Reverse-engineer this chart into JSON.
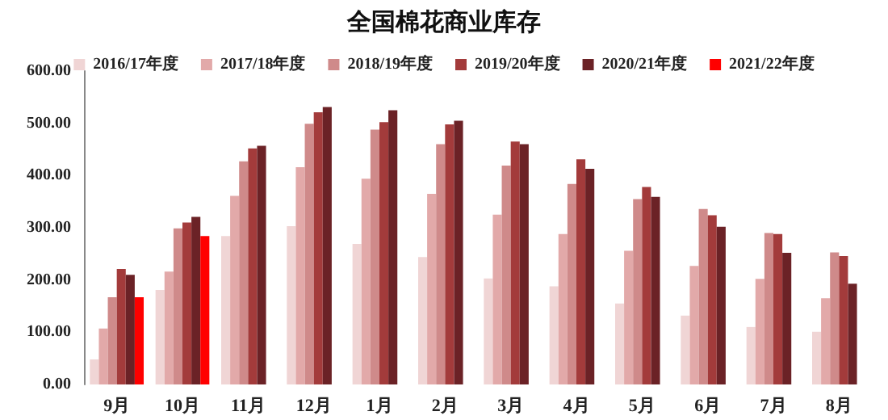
{
  "chart_data": {
    "type": "bar",
    "title": "全国棉花商业库存",
    "categories": [
      "9月",
      "10月",
      "11月",
      "12月",
      "1月",
      "2月",
      "3月",
      "4月",
      "5月",
      "6月",
      "7月",
      "8月"
    ],
    "series": [
      {
        "name": "2016/17年度",
        "color": "#f0d5d5",
        "values": [
          48,
          181,
          284,
          303,
          269,
          244,
          203,
          188,
          155,
          132,
          110,
          101
        ]
      },
      {
        "name": "2017/18年度",
        "color": "#e2a9a9",
        "values": [
          107,
          216,
          361,
          416,
          394,
          365,
          325,
          288,
          256,
          227,
          202,
          165
        ]
      },
      {
        "name": "2018/19年度",
        "color": "#cf8a8a",
        "values": [
          167,
          299,
          427,
          499,
          488,
          460,
          419,
          384,
          355,
          336,
          290,
          253
        ]
      },
      {
        "name": "2019/20年度",
        "color": "#a33b3b",
        "values": [
          221,
          310,
          452,
          521,
          502,
          498,
          465,
          431,
          378,
          324,
          288,
          246
        ]
      },
      {
        "name": "2020/21年度",
        "color": "#6b2226",
        "values": [
          210,
          321,
          457,
          531,
          525,
          505,
          460,
          413,
          359,
          302,
          252,
          193
        ]
      },
      {
        "name": "2021/22年度",
        "color": "#ff0000",
        "values": [
          167,
          284,
          null,
          null,
          null,
          null,
          null,
          null,
          null,
          null,
          null,
          null
        ]
      }
    ],
    "ylim": [
      0,
      600
    ],
    "yticks": [
      {
        "value": 0,
        "label": "0.00"
      },
      {
        "value": 100,
        "label": "100.00"
      },
      {
        "value": 200,
        "label": "200.00"
      },
      {
        "value": 300,
        "label": "300.00"
      },
      {
        "value": 400,
        "label": "400.00"
      },
      {
        "value": 500,
        "label": "500.00"
      },
      {
        "value": 600,
        "label": "600.00"
      }
    ],
    "grid": false,
    "legend": "top"
  }
}
